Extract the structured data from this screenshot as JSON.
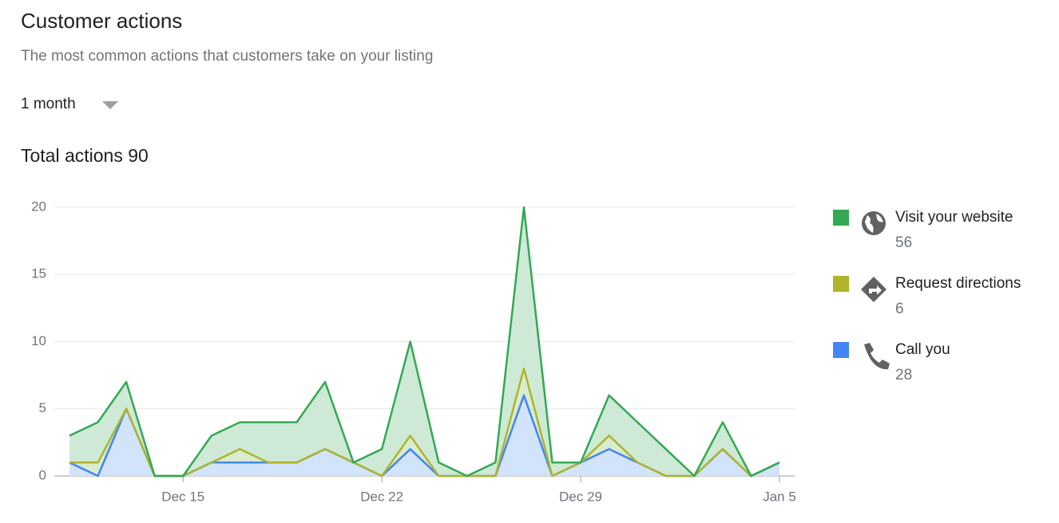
{
  "header": {
    "title": "Customer actions",
    "subtitle": "The most common actions that customers take on your listing",
    "period": "1 month"
  },
  "summary": {
    "label": "Total actions",
    "total": 90
  },
  "chart_data": {
    "type": "stacked_area",
    "categories": [
      null,
      null,
      null,
      null,
      "Dec 15",
      null,
      null,
      null,
      null,
      null,
      null,
      "Dec 22",
      null,
      null,
      null,
      null,
      null,
      null,
      "Dec 29",
      null,
      null,
      null,
      null,
      null,
      null,
      "Jan 5"
    ],
    "series": [
      {
        "name": "Call you",
        "color": "#4285f4",
        "fill": "#d2e3fc",
        "total": 28,
        "values": [
          1,
          0,
          5,
          0,
          0,
          1,
          1,
          1,
          1,
          2,
          1,
          0,
          2,
          0,
          0,
          0,
          6,
          0,
          1,
          2,
          1,
          0,
          0,
          2,
          0,
          1
        ]
      },
      {
        "name": "Request directions",
        "color": "#afb42b",
        "fill": "#d9ecd0",
        "total": 6,
        "values": [
          0,
          1,
          0,
          0,
          0,
          0,
          1,
          0,
          0,
          0,
          0,
          0,
          1,
          0,
          0,
          0,
          2,
          0,
          0,
          1,
          0,
          0,
          0,
          0,
          0,
          0
        ]
      },
      {
        "name": "Visit your website",
        "color": "#34a853",
        "fill": "#ceead6",
        "total": 56,
        "values": [
          2,
          3,
          2,
          0,
          0,
          2,
          2,
          3,
          3,
          5,
          0,
          2,
          7,
          1,
          0,
          1,
          12,
          1,
          0,
          3,
          3,
          2,
          0,
          2,
          0,
          0
        ]
      }
    ],
    "ylim": [
      0,
      20
    ],
    "yticks": [
      0,
      5,
      10,
      15,
      20
    ],
    "grid": true
  }
}
